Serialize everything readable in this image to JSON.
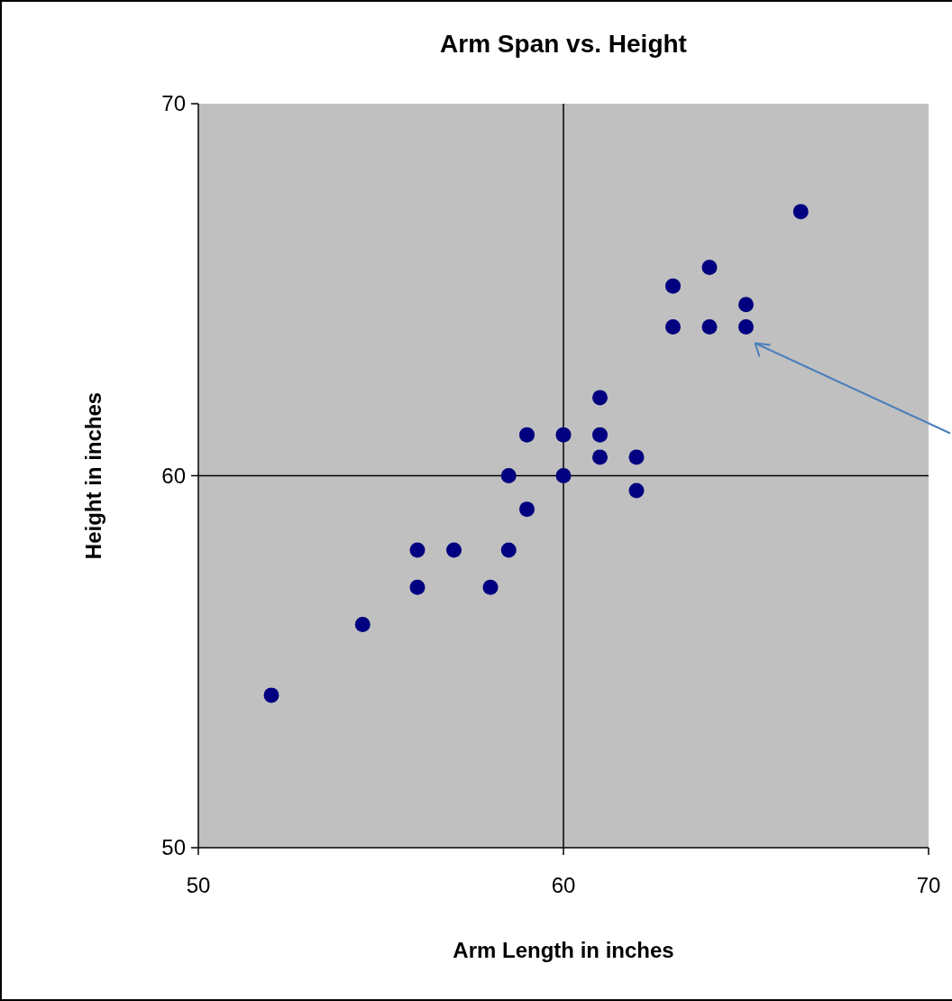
{
  "chart_data": {
    "type": "scatter",
    "title": "Arm Span vs. Height",
    "xlabel": "Arm Length in inches",
    "ylabel": "Height in inches",
    "x": [
      52,
      54.5,
      56,
      56,
      57,
      58,
      58.5,
      58.5,
      59,
      59,
      60,
      60,
      61,
      61,
      61,
      62,
      62,
      63,
      63,
      64,
      64,
      65,
      65,
      66.5
    ],
    "series": [
      {
        "color": "#000080",
        "values": [
          54.1,
          56,
          57,
          58,
          58,
          57,
          58,
          60,
          59.1,
          61.1,
          61.1,
          60,
          62.1,
          61.1,
          60.5,
          60.5,
          59.6,
          64,
          65.1,
          64,
          65.6,
          64,
          64.6,
          67.1
        ]
      }
    ],
    "xlim": [
      50,
      70
    ],
    "ylim": [
      50,
      70
    ],
    "xticks": [
      50,
      60,
      70
    ],
    "yticks": [
      50,
      60,
      70
    ],
    "grid": true,
    "marker": "circle"
  }
}
